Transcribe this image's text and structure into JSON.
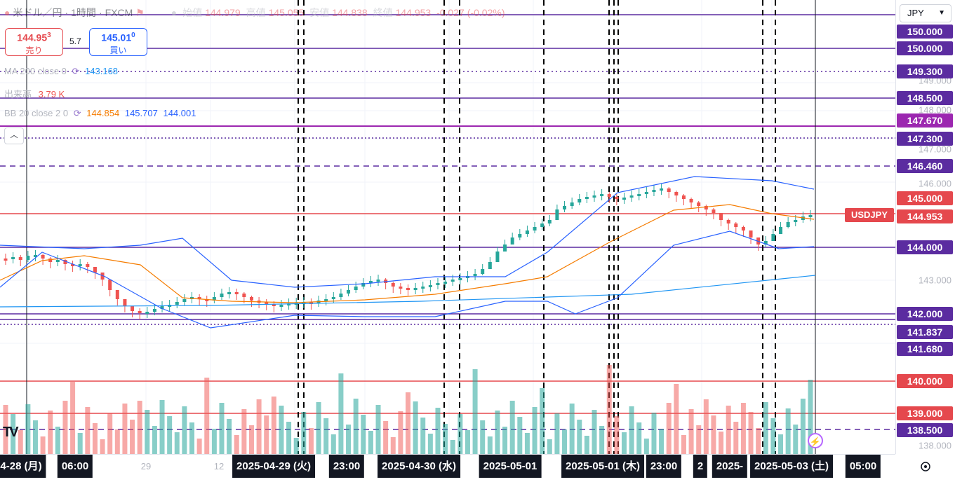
{
  "header": {
    "symbol": "米ドル／円",
    "interval": "1時間",
    "exchange": "FXCM",
    "open_label": "始値",
    "open": "144.979",
    "high_label": "高値",
    "high": "145.055",
    "low_label": "安値",
    "low": "144.838",
    "close_label": "終値",
    "close": "144.953",
    "change": "-0.027",
    "change_pct": "(-0.02%)"
  },
  "trade": {
    "sell_price": "144.95",
    "sell_sup": "3",
    "sell_label": "売り",
    "spread": "5.7",
    "buy_price": "145.01",
    "buy_sup": "0",
    "buy_label": "買い"
  },
  "indicators": {
    "ma_name": "MA 200 close 0",
    "ma_value": "143.168",
    "volume_name": "出来高",
    "volume_value": "3.79 K",
    "bb_name": "BB 20 close 2 0",
    "bb_basis": "144.854",
    "bb_upper": "145.707",
    "bb_lower": "144.001"
  },
  "currency": {
    "selected": "JPY"
  },
  "symbol_tag": "USDJPY",
  "colors": {
    "up": "#26a69a",
    "down": "#ef5350",
    "line": "#5b2ca0",
    "accent_purple": "#7e3fd1",
    "ma": "#2196f3",
    "bb": "#2962ff",
    "basis": "#f57c00"
  },
  "price_axis": {
    "ticks": [
      "149.000",
      "148.000",
      "147.000",
      "146.000",
      "143.000",
      "138.000"
    ],
    "labels": [
      {
        "text": "150.000",
        "color": "#5b2ca0"
      },
      {
        "text": "150.000",
        "color": "#5b2ca0"
      },
      {
        "text": "149.300",
        "color": "#5b2ca0"
      },
      {
        "text": "148.500",
        "color": "#5b2ca0"
      },
      {
        "text": "147.670",
        "color": "#9c27b0"
      },
      {
        "text": "147.300",
        "color": "#5b2ca0"
      },
      {
        "text": "146.460",
        "color": "#5b2ca0"
      },
      {
        "text": "145.000",
        "color": "#e5484d"
      },
      {
        "text": "144.953",
        "color": "#e5484d"
      },
      {
        "text": "144.000",
        "color": "#5b2ca0"
      },
      {
        "text": "142.000",
        "color": "#5b2ca0"
      },
      {
        "text": "141.837",
        "color": "#5b2ca0"
      },
      {
        "text": "141.680",
        "color": "#5b2ca0"
      },
      {
        "text": "140.000",
        "color": "#e5484d"
      },
      {
        "text": "139.000",
        "color": "#e5484d"
      },
      {
        "text": "138.500",
        "color": "#5b2ca0"
      }
    ]
  },
  "time_axis": {
    "labels": [
      {
        "text": "4-28 (月)",
        "hl": true
      },
      {
        "text": "06:00",
        "hl": true
      },
      {
        "text": "29",
        "hl": false
      },
      {
        "text": "12",
        "hl": false
      },
      {
        "text": "2025-04-29 (火)",
        "hl": true
      },
      {
        "text": "23:00",
        "hl": true
      },
      {
        "text": "2025-04-30 (水)",
        "hl": true
      },
      {
        "text": "2025-05-01",
        "hl": true
      },
      {
        "text": "2025-05-01 (木)",
        "hl": true
      },
      {
        "text": "23:00",
        "hl": true
      },
      {
        "text": "2",
        "hl": true
      },
      {
        "text": "2025-",
        "hl": true
      },
      {
        "text": "2025-05-03 (土)",
        "hl": true
      },
      {
        "text": "05:00",
        "hl": true
      }
    ]
  },
  "icons": {
    "logo": "tradingview-logo-icon",
    "settings": "gear-icon",
    "flag": "flag-icon",
    "bolt": "bolt-icon"
  }
}
